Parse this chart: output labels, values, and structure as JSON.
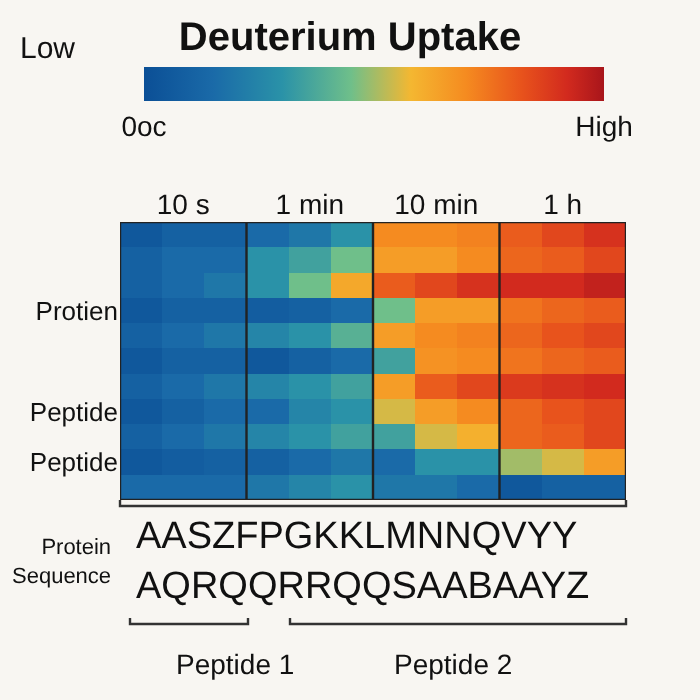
{
  "chart_data": {
    "type": "heatmap",
    "title": "Deuterium Uptake",
    "categories": [
      null,
      "10 s",
      null,
      null,
      "1 min",
      null,
      null,
      "10 min",
      null,
      null,
      "1 h",
      null
    ],
    "y_categories": [
      null,
      null,
      null,
      "Protien",
      null,
      null,
      null,
      "Peptide",
      null,
      "Peptide",
      null
    ],
    "cells": [
      [
        0.05,
        0.1,
        0.1,
        0.15,
        0.2,
        0.3,
        0.7,
        0.7,
        0.72,
        0.8,
        0.85,
        0.9
      ],
      [
        0.1,
        0.15,
        0.15,
        0.3,
        0.35,
        0.45,
        0.65,
        0.65,
        0.7,
        0.78,
        0.8,
        0.85
      ],
      [
        0.1,
        0.15,
        0.2,
        0.3,
        0.45,
        0.62,
        0.8,
        0.85,
        0.9,
        0.92,
        0.92,
        0.95
      ],
      [
        0.05,
        0.1,
        0.1,
        0.08,
        0.1,
        0.15,
        0.45,
        0.65,
        0.65,
        0.75,
        0.78,
        0.8
      ],
      [
        0.1,
        0.15,
        0.2,
        0.25,
        0.3,
        0.4,
        0.65,
        0.7,
        0.72,
        0.78,
        0.82,
        0.85
      ],
      [
        0.05,
        0.1,
        0.1,
        0.05,
        0.1,
        0.15,
        0.35,
        0.68,
        0.7,
        0.75,
        0.78,
        0.8
      ],
      [
        0.1,
        0.15,
        0.2,
        0.25,
        0.3,
        0.35,
        0.65,
        0.8,
        0.85,
        0.88,
        0.9,
        0.92
      ],
      [
        0.05,
        0.1,
        0.15,
        0.15,
        0.25,
        0.3,
        0.55,
        0.65,
        0.7,
        0.78,
        0.82,
        0.85
      ],
      [
        0.1,
        0.15,
        0.2,
        0.25,
        0.3,
        0.35,
        0.35,
        0.55,
        0.6,
        0.78,
        0.8,
        0.85
      ],
      [
        0.05,
        0.08,
        0.1,
        0.1,
        0.15,
        0.2,
        0.15,
        0.3,
        0.3,
        0.5,
        0.55,
        0.65
      ],
      [
        0.15,
        0.15,
        0.15,
        0.2,
        0.25,
        0.3,
        0.2,
        0.2,
        0.15,
        0.05,
        0.1,
        0.1
      ]
    ],
    "clim": [
      0,
      1
    ],
    "cticks": [
      {
        "value": 0,
        "label": "0oc"
      },
      {
        "value": 1,
        "label": "High"
      }
    ],
    "annotations": [
      "Low",
      "Protein\nSequence",
      "AASZFPGKKLMNNQVYY",
      "AQRQQRRQQSAABAAYZ",
      "Peptide 1",
      "Peptide 2"
    ]
  }
}
